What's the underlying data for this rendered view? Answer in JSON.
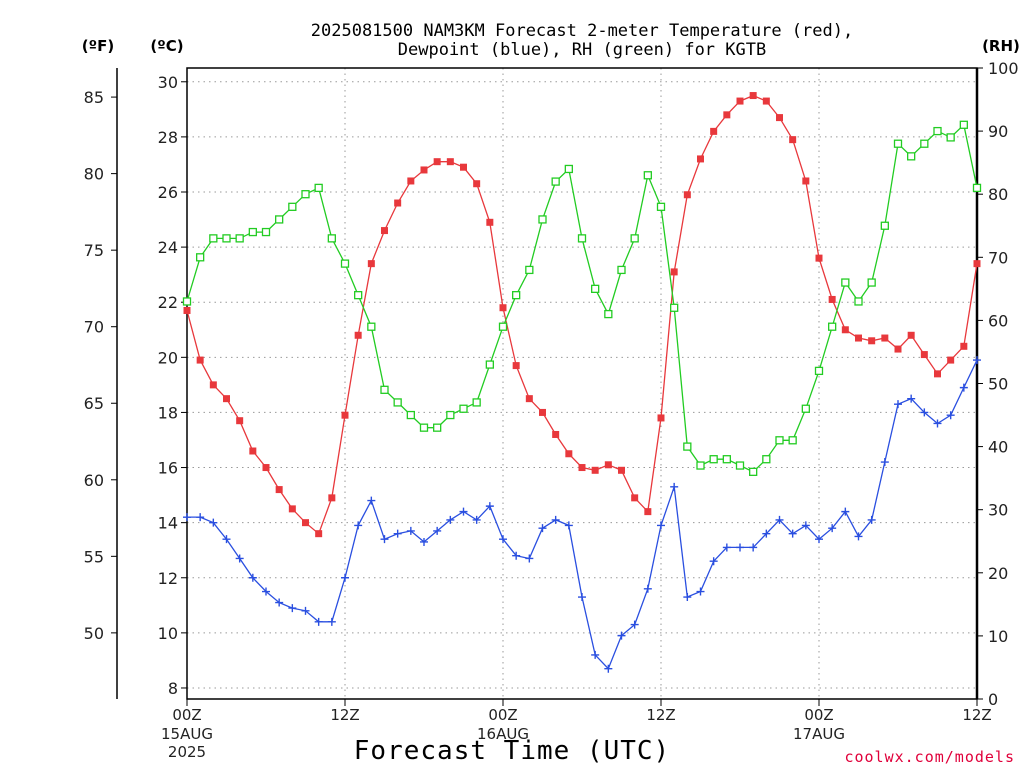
{
  "chart_data": {
    "type": "line",
    "title_line1": "2025081500 NAM3KM Forecast 2-meter Temperature (red),",
    "title_line2": "Dewpoint (blue), RH (green) for KGTB",
    "unit_f": "(ºF)",
    "unit_c": "(ºC)",
    "unit_rh": "(RH)",
    "xlabel": "Forecast Time (UTC)",
    "credit": "coolwx.com/models",
    "x_ticks": [
      {
        "hour": 0,
        "label": "00Z",
        "sub1": "15AUG",
        "sub2": "2025"
      },
      {
        "hour": 12,
        "label": "12Z",
        "sub1": "",
        "sub2": ""
      },
      {
        "hour": 24,
        "label": "00Z",
        "sub1": "16AUG",
        "sub2": ""
      },
      {
        "hour": 36,
        "label": "12Z",
        "sub1": "",
        "sub2": ""
      },
      {
        "hour": 48,
        "label": "00Z",
        "sub1": "17AUG",
        "sub2": ""
      },
      {
        "hour": 60,
        "label": "12Z",
        "sub1": "",
        "sub2": ""
      }
    ],
    "xlim": [
      0,
      60
    ],
    "ylim_c": [
      7.6,
      30.5
    ],
    "ylim_rh": [
      0,
      100
    ],
    "c_ticks": [
      "8",
      "10",
      "12",
      "14",
      "16",
      "18",
      "20",
      "22",
      "24",
      "26",
      "28",
      "30"
    ],
    "f_ticks": [
      "50",
      "55",
      "60",
      "65",
      "70",
      "75",
      "80",
      "85"
    ],
    "rh_ticks": [
      "0",
      "10",
      "20",
      "30",
      "40",
      "50",
      "60",
      "70",
      "80",
      "90",
      "100"
    ],
    "colors": {
      "temperature": "#e8383c",
      "dewpoint": "#2a4fe0",
      "rh": "#22cc22"
    },
    "series": [
      {
        "key": "temperature",
        "marker": "filled-square",
        "values": [
          21.7,
          19.9,
          19.0,
          18.5,
          17.7,
          16.6,
          16.0,
          15.2,
          14.5,
          14.0,
          13.6,
          14.9,
          17.9,
          20.8,
          23.4,
          24.6,
          25.6,
          26.4,
          26.8,
          27.1,
          27.1,
          26.9,
          26.3,
          24.9,
          21.8,
          19.7,
          18.5,
          18.0,
          17.2,
          16.5,
          16.0,
          15.9,
          16.1,
          15.9,
          14.9,
          14.4,
          17.8,
          23.1,
          25.9,
          27.2,
          28.2,
          28.8,
          29.3,
          29.5,
          29.3,
          28.7,
          27.9,
          26.4,
          23.6,
          22.1,
          21.0,
          20.7,
          20.6,
          20.7,
          20.3,
          20.8,
          20.1,
          19.4,
          19.9,
          20.4,
          23.4
        ]
      },
      {
        "key": "dewpoint",
        "marker": "plus",
        "values": [
          14.2,
          14.2,
          14.0,
          13.4,
          12.7,
          12.0,
          11.5,
          11.1,
          10.9,
          10.8,
          10.4,
          10.4,
          12.0,
          13.9,
          14.8,
          13.4,
          13.6,
          13.7,
          13.3,
          13.7,
          14.1,
          14.4,
          14.1,
          14.6,
          13.4,
          12.8,
          12.7,
          13.8,
          14.1,
          13.9,
          11.3,
          9.2,
          8.7,
          9.9,
          10.3,
          11.6,
          13.9,
          15.3,
          11.3,
          11.5,
          12.6,
          13.1,
          13.1,
          13.1,
          13.6,
          14.1,
          13.6,
          13.9,
          13.4,
          13.8,
          14.4,
          13.5,
          14.1,
          16.2,
          18.3,
          18.5,
          18.0,
          17.6,
          17.9,
          18.9,
          19.9
        ]
      },
      {
        "key": "rh",
        "marker": "open-square",
        "values": [
          63,
          70,
          73,
          73,
          73,
          74,
          74,
          76,
          78,
          80,
          81,
          73,
          69,
          64,
          59,
          49,
          47,
          45,
          43,
          43,
          45,
          46,
          47,
          53,
          59,
          64,
          68,
          76,
          82,
          84,
          73,
          65,
          61,
          68,
          73,
          83,
          78,
          62,
          40,
          37,
          38,
          38,
          37,
          36,
          38,
          41,
          41,
          46,
          52,
          59,
          66,
          63,
          66,
          75,
          88,
          86,
          88,
          90,
          89,
          91,
          81
        ]
      }
    ]
  }
}
